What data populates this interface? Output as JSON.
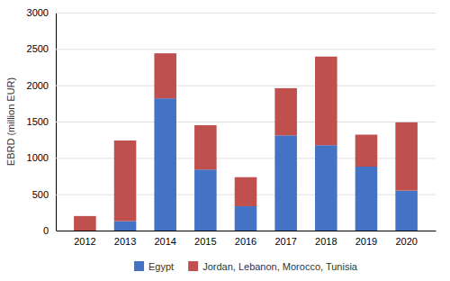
{
  "chart_data": {
    "type": "bar",
    "stacked": true,
    "categories": [
      "2012",
      "2013",
      "2014",
      "2015",
      "2016",
      "2017",
      "2018",
      "2019",
      "2020"
    ],
    "series": [
      {
        "name": "Egypt",
        "color": "#4472C4",
        "values": [
          0,
          130,
          1820,
          840,
          335,
          1310,
          1175,
          880,
          550
        ]
      },
      {
        "name": "Jordan, Lebanon, Morocco, Tunisia",
        "color": "#C0504D",
        "values": [
          200,
          1110,
          620,
          610,
          400,
          650,
          1220,
          440,
          940
        ]
      }
    ],
    "y_label": "EBRD (million EUR)",
    "ylim": [
      0,
      3000
    ],
    "yticks": [
      0,
      500,
      1000,
      1500,
      2000,
      2500,
      3000
    ],
    "grid": true,
    "legend": "bottom"
  }
}
